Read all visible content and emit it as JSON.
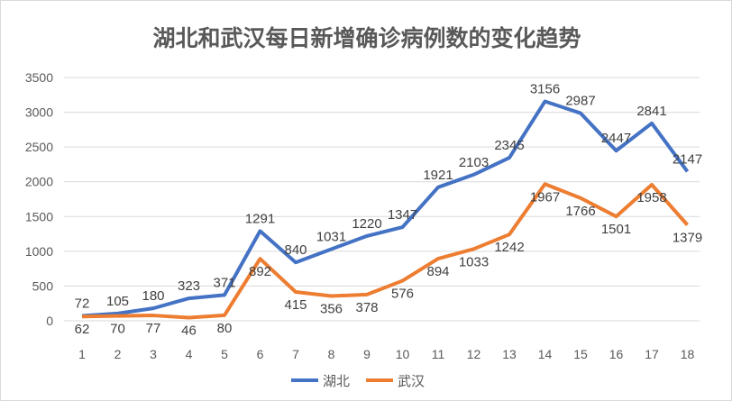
{
  "chart_data": {
    "type": "line",
    "title": "湖北和武汉每日新增确诊病例数的变化趋势",
    "xlabel": "",
    "ylabel": "",
    "x": [
      1,
      2,
      3,
      4,
      5,
      6,
      7,
      8,
      9,
      10,
      11,
      12,
      13,
      14,
      15,
      16,
      17,
      18
    ],
    "ylim": [
      0,
      3500
    ],
    "yticks": [
      0,
      500,
      1000,
      1500,
      2000,
      2500,
      3000,
      3500
    ],
    "grid": true,
    "legend": "bottom",
    "series": [
      {
        "name": "湖北",
        "color": "#4472c4",
        "values": [
          72,
          105,
          180,
          323,
          371,
          1291,
          840,
          1031,
          1220,
          1347,
          1921,
          2103,
          2345,
          3156,
          2987,
          2447,
          2841,
          2147
        ]
      },
      {
        "name": "武汉",
        "color": "#ed7d31",
        "values": [
          62,
          70,
          77,
          46,
          80,
          892,
          415,
          356,
          378,
          576,
          894,
          1033,
          1242,
          1967,
          1766,
          1501,
          1958,
          1379
        ]
      }
    ]
  }
}
